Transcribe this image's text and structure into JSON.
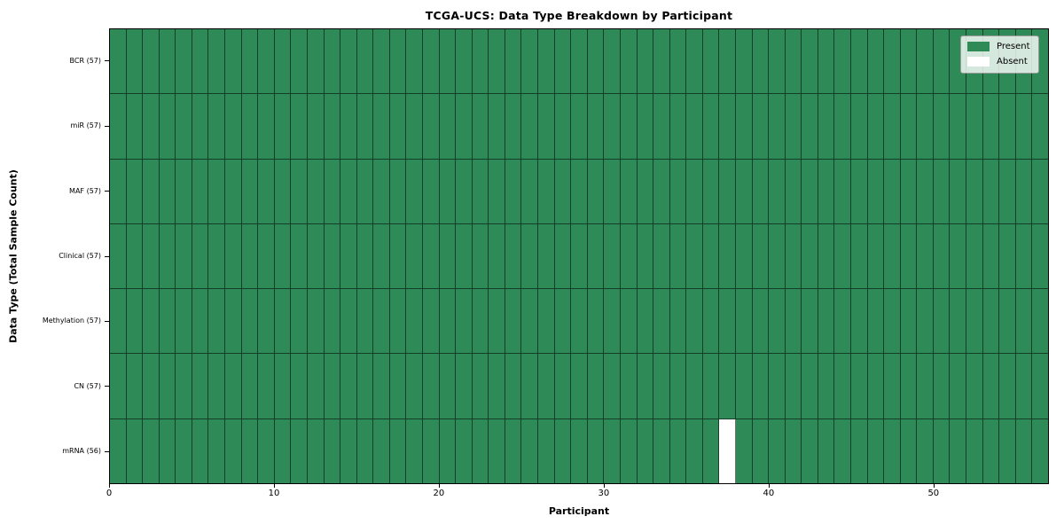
{
  "chart_data": {
    "type": "heatmap",
    "title": "TCGA-UCS: Data Type Breakdown by Participant",
    "xlabel": "Participant",
    "ylabel": "Data Type (Total Sample Count)",
    "participants": 57,
    "xlim": [
      0,
      57
    ],
    "x_ticks": [
      0,
      10,
      20,
      30,
      40,
      50
    ],
    "grid": "cell-borders",
    "rows": [
      {
        "label": "BCR (57)",
        "data_type": "BCR",
        "total": 57,
        "absent_participants": []
      },
      {
        "label": "miR (57)",
        "data_type": "miR",
        "total": 57,
        "absent_participants": []
      },
      {
        "label": "MAF (57)",
        "data_type": "MAF",
        "total": 57,
        "absent_participants": []
      },
      {
        "label": "Clinical (57)",
        "data_type": "Clinical",
        "total": 57,
        "absent_participants": []
      },
      {
        "label": "Methylation (57)",
        "data_type": "Methylation",
        "total": 57,
        "absent_participants": []
      },
      {
        "label": "CN (57)",
        "data_type": "CN",
        "total": 57,
        "absent_participants": []
      },
      {
        "label": "mRNA (56)",
        "data_type": "mRNA",
        "total": 56,
        "absent_participants": [
          37
        ]
      }
    ],
    "legend": {
      "position": "upper right",
      "entries": [
        {
          "label": "Present",
          "color": "#2e8b57"
        },
        {
          "label": "Absent",
          "color": "#ffffff"
        }
      ]
    },
    "colors": {
      "present": "#2e8b57",
      "absent": "#ffffff",
      "cell_edge": "rgba(0,0,0,0.55)",
      "spine": "#000000"
    }
  }
}
